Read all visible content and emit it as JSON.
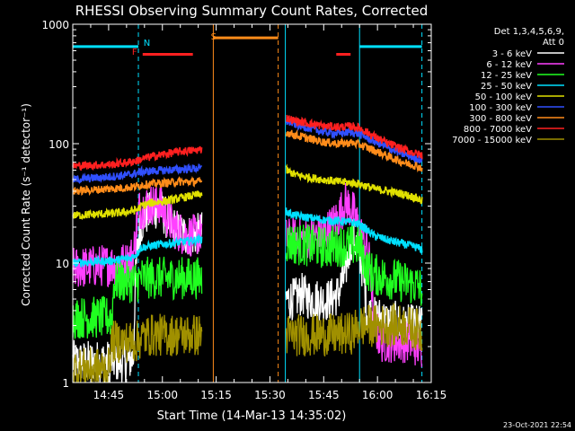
{
  "chart_data": {
    "type": "line",
    "title": "RHESSI Observing Summary Count Rates, Corrected",
    "xlabel": "Start Time (14-Mar-13 14:35:02)",
    "ylabel": "Corrected Count Rate (s⁻¹ detector⁻¹)",
    "y_scale": "log",
    "ylim": [
      1,
      1000
    ],
    "xlim_minutes": [
      0,
      100
    ],
    "x_ticks": [
      {
        "label": "14:45",
        "minute": 10
      },
      {
        "label": "15:00",
        "minute": 25
      },
      {
        "label": "15:15",
        "minute": 40
      },
      {
        "label": "15:30",
        "minute": 55
      },
      {
        "label": "15:45",
        "minute": 70
      },
      {
        "label": "16:00",
        "minute": 85
      },
      {
        "label": "16:15",
        "minute": 100
      }
    ],
    "y_ticks": [
      {
        "label": "1",
        "value": 1
      },
      {
        "label": "10",
        "value": 10
      },
      {
        "label": "100",
        "value": 100
      },
      {
        "label": "1000",
        "value": 1000
      }
    ],
    "legend_header": [
      "Det 1,3,4,5,6,9,",
      "Att 0"
    ],
    "legend_position": "top-right",
    "timestamp": "23-Oct-2021 22:54",
    "markers": [
      {
        "label": "F",
        "color": "#ff2020",
        "start": 18,
        "end": 19
      },
      {
        "label": "N",
        "color": "#00e0ff",
        "start": 19,
        "end": 20
      },
      {
        "label": "S",
        "color": "#ff8c1a",
        "start": 40,
        "end": 41
      }
    ],
    "vlines": [
      {
        "minute": 18.3,
        "color": "#00e0ff",
        "style": "dashed"
      },
      {
        "minute": 39.2,
        "color": "#ff8c1a",
        "style": "solid"
      },
      {
        "minute": 57.3,
        "color": "#ff8c1a",
        "style": "dashed"
      },
      {
        "minute": 59.3,
        "color": "#00e0ff",
        "style": "solid"
      },
      {
        "minute": 80.0,
        "color": "#00e0ff",
        "style": "solid"
      },
      {
        "minute": 97.4,
        "color": "#00e0ff",
        "style": "dashed"
      }
    ],
    "bars": [
      {
        "color": "#00e0ff",
        "start": 0,
        "end": 18.3,
        "level": 650
      },
      {
        "color": "#ff2020",
        "start": 19.5,
        "end": 33.5,
        "level": 560
      },
      {
        "color": "#ff8c1a",
        "start": 39.2,
        "end": 57.3,
        "level": 770
      },
      {
        "color": "#ff2020",
        "start": 73.5,
        "end": 77.5,
        "level": 560
      },
      {
        "color": "#00e0ff",
        "start": 80.0,
        "end": 97.4,
        "level": 650
      }
    ],
    "data_gaps": [
      [
        36.0,
        59.5
      ]
    ],
    "series": [
      {
        "name": "3 - 6 keV",
        "color": "#ffffff",
        "x": [
          0,
          15,
          17,
          18.5,
          20,
          22,
          24,
          26,
          28,
          30,
          32,
          34,
          36,
          59.5,
          62,
          64,
          66,
          68,
          70,
          72,
          74,
          76,
          78,
          80,
          82,
          84,
          86,
          88,
          90,
          92,
          94,
          96,
          97.5
        ],
        "y": [
          1.5,
          1.5,
          1.6,
          18,
          25,
          27,
          30,
          24,
          20,
          18,
          17,
          17,
          18,
          5,
          5,
          5.5,
          5,
          5,
          4.8,
          5,
          5.5,
          8,
          17,
          12,
          4,
          3.5,
          3.5,
          3.2,
          3.2,
          3,
          3,
          3,
          3
        ]
      },
      {
        "name": "6 - 12 keV",
        "color": "#ff40ff",
        "x": [
          0,
          15,
          17,
          18.5,
          20,
          22,
          24,
          26,
          28,
          30,
          32,
          34,
          36,
          59.5,
          62,
          64,
          66,
          68,
          70,
          72,
          74,
          76,
          78,
          80,
          82,
          84,
          86,
          88,
          90,
          92,
          94,
          96,
          97.5
        ],
        "y": [
          9,
          10,
          12,
          28,
          30,
          31,
          32,
          25,
          20,
          18,
          17,
          17,
          18,
          16,
          16,
          16,
          16,
          17,
          18,
          20,
          24,
          32,
          28,
          18,
          14,
          3,
          2.2,
          2.2,
          2.2,
          2.2,
          2.2,
          2,
          2
        ]
      },
      {
        "name": "12 - 25 keV",
        "color": "#20ff20",
        "x": [
          0,
          11,
          11.5,
          18,
          19,
          22,
          26,
          30,
          34,
          36,
          59.5,
          62,
          66,
          70,
          74,
          78,
          80,
          82,
          84,
          88,
          92,
          96,
          97.5
        ],
        "y": [
          3.5,
          3.5,
          7,
          7,
          7.5,
          7.5,
          7.5,
          7.5,
          7.5,
          7.5,
          15,
          14.5,
          14,
          13.5,
          14,
          14,
          14,
          9,
          8,
          7.5,
          7,
          6.5,
          6
        ]
      },
      {
        "name": "25 - 50 keV",
        "color": "#00e0ff",
        "x": [
          0,
          11,
          16,
          18,
          19,
          22,
          26,
          30,
          34,
          36,
          59.5,
          62,
          66,
          70,
          74,
          78,
          80,
          84,
          88,
          92,
          96,
          97.5
        ],
        "y": [
          10,
          10.5,
          11,
          12,
          13.5,
          14,
          14.5,
          15,
          15.5,
          16,
          27,
          25,
          24,
          23,
          22.5,
          22,
          21,
          17,
          15.5,
          14.5,
          13.5,
          13
        ]
      },
      {
        "name": "50 - 100 keV",
        "color": "#e0e000",
        "x": [
          0,
          11,
          16,
          18,
          19,
          22,
          26,
          30,
          34,
          36,
          59.5,
          62,
          66,
          70,
          74,
          78,
          80,
          84,
          88,
          92,
          96,
          97.5
        ],
        "y": [
          25,
          26,
          27,
          28,
          30,
          32,
          33,
          35,
          37,
          38,
          60,
          55,
          52,
          50,
          48,
          47,
          46,
          42,
          40,
          38,
          35,
          33
        ]
      },
      {
        "name": "100 - 300 keV",
        "color": "#3050ff",
        "x": [
          0,
          11,
          16,
          18,
          19,
          22,
          26,
          30,
          34,
          36,
          59.5,
          62,
          66,
          70,
          74,
          78,
          80,
          84,
          88,
          92,
          96,
          97.5
        ],
        "y": [
          50,
          53,
          55,
          57,
          58,
          59,
          60,
          61,
          62,
          62,
          155,
          145,
          135,
          125,
          122,
          125,
          120,
          105,
          92,
          82,
          75,
          72
        ]
      },
      {
        "name": "300 - 800 keV",
        "color": "#ff8c1a",
        "x": [
          0,
          11,
          16,
          18,
          19,
          22,
          26,
          30,
          34,
          36,
          59.5,
          62,
          66,
          70,
          74,
          78,
          80,
          84,
          88,
          92,
          96,
          97.5
        ],
        "y": [
          40,
          42,
          43,
          44,
          45,
          46,
          47,
          48,
          48,
          48,
          125,
          118,
          110,
          103,
          100,
          102,
          98,
          88,
          78,
          70,
          65,
          62
        ]
      },
      {
        "name": "800 - 7000 keV",
        "color": "#ff2020",
        "x": [
          0,
          11,
          16,
          18,
          19,
          22,
          26,
          30,
          34,
          36,
          59.5,
          62,
          66,
          70,
          74,
          78,
          80,
          84,
          88,
          92,
          96,
          97.5
        ],
        "y": [
          65,
          67,
          70,
          72,
          74,
          78,
          82,
          86,
          88,
          90,
          165,
          155,
          148,
          140,
          138,
          140,
          135,
          115,
          100,
          90,
          82,
          80
        ]
      },
      {
        "name": "7000 - 15000 keV",
        "color": "#a09000",
        "x": [
          0,
          5,
          10,
          11,
          15,
          18,
          19,
          22,
          26,
          30,
          34,
          36,
          59.5,
          62,
          66,
          70,
          74,
          78,
          80,
          84,
          88,
          92,
          96,
          97.5
        ],
        "y": [
          1.3,
          1.3,
          1.3,
          2.2,
          2.2,
          2.2,
          2.4,
          2.5,
          2.5,
          2.5,
          2.5,
          2.5,
          2.5,
          2.5,
          2.5,
          2.5,
          2.5,
          2.6,
          3,
          3,
          3,
          3,
          2.8,
          2.5
        ]
      }
    ]
  }
}
